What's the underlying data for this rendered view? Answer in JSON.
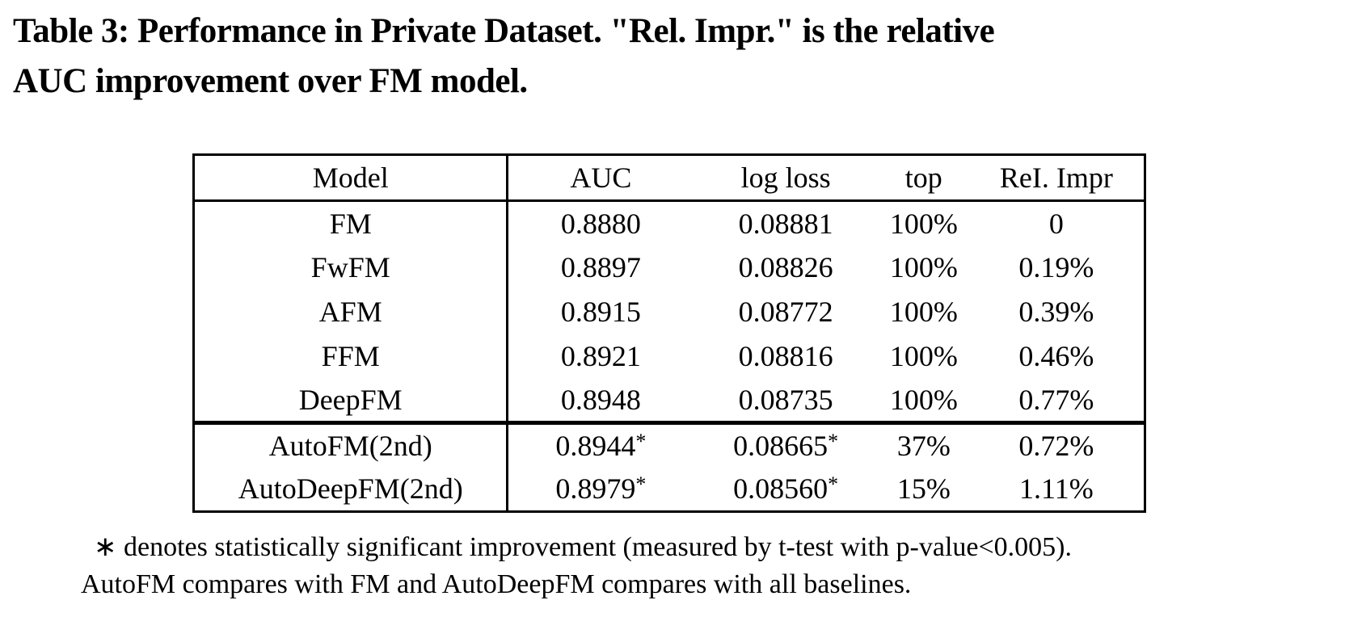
{
  "caption": {
    "line1": "Table 3: Performance in Private Dataset. \"Rel. Impr.\" is the relative",
    "line2": "AUC improvement over FM model."
  },
  "table": {
    "headers": [
      "Model",
      "AUC",
      "log loss",
      "top",
      "ReI. Impr"
    ],
    "rows": [
      {
        "model": "FM",
        "auc": "0.8880",
        "auc_sup": "",
        "logloss": "0.08881",
        "logloss_sup": "",
        "top": "100%",
        "rel": "0"
      },
      {
        "model": "FwFM",
        "auc": "0.8897",
        "auc_sup": "",
        "logloss": "0.08826",
        "logloss_sup": "",
        "top": "100%",
        "rel": "0.19%"
      },
      {
        "model": "AFM",
        "auc": "0.8915",
        "auc_sup": "",
        "logloss": "0.08772",
        "logloss_sup": "",
        "top": "100%",
        "rel": "0.39%"
      },
      {
        "model": "FFM",
        "auc": "0.8921",
        "auc_sup": "",
        "logloss": "0.08816",
        "logloss_sup": "",
        "top": "100%",
        "rel": "0.46%"
      },
      {
        "model": "DeepFM",
        "auc": "0.8948",
        "auc_sup": "",
        "logloss": "0.08735",
        "logloss_sup": "",
        "top": "100%",
        "rel": "0.77%"
      },
      {
        "model": "AutoFM(2nd)",
        "auc": "0.8944",
        "auc_sup": "*",
        "logloss": "0.08665",
        "logloss_sup": "*",
        "top": "37%",
        "rel": "0.72%"
      },
      {
        "model": "AutoDeepFM(2nd)",
        "auc": "0.8979",
        "auc_sup": "*",
        "logloss": "0.08560",
        "logloss_sup": "*",
        "top": "15%",
        "rel": "1.11%"
      }
    ]
  },
  "footnote": {
    "line1": "∗ denotes statistically significant improvement (measured by t-test with p-value<0.005).",
    "line2": "AutoFM compares with FM and AutoDeepFM compares with all baselines."
  },
  "colors": {
    "text": "#000000",
    "background": "#ffffff",
    "border": "#000000"
  }
}
